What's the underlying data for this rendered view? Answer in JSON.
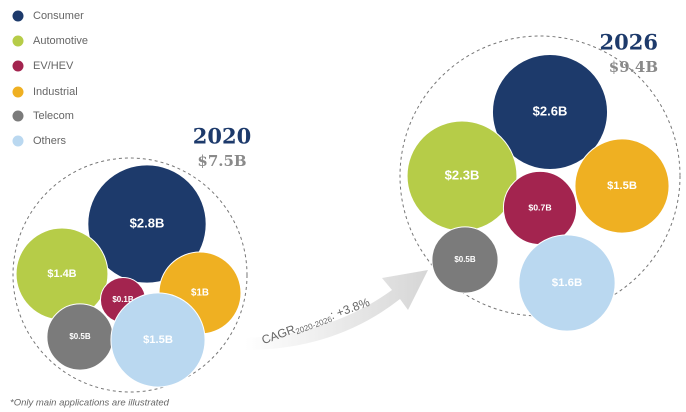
{
  "chart_data": [
    {
      "type": "packed_bubble",
      "title": "2020",
      "subtitle": "$7.5B",
      "categories": [
        "Consumer",
        "Automotive",
        "EV/HEV",
        "Industrial",
        "Telecom",
        "Others"
      ],
      "colors": [
        "#1d3a6b",
        "#b6cc48",
        "#a3244f",
        "#efb022",
        "#7b7b7b",
        "#bad8f0"
      ],
      "values": [
        2.8,
        1.4,
        0.1,
        1,
        0.5,
        1.5
      ],
      "value_labels": [
        "$2.8B",
        "$1.4B",
        "$0.1B",
        "$1B",
        "$0.5B",
        "$1.5B"
      ]
    },
    {
      "type": "packed_bubble",
      "title": "2026",
      "subtitle": "$9.4B",
      "categories": [
        "Consumer",
        "Automotive",
        "EV/HEV",
        "Industrial",
        "Telecom",
        "Others"
      ],
      "colors": [
        "#1d3a6b",
        "#b6cc48",
        "#a3244f",
        "#efb022",
        "#7b7b7b",
        "#bad8f0"
      ],
      "values": [
        2.6,
        2.3,
        0.7,
        1.5,
        0.5,
        1.6
      ],
      "value_labels": [
        "$2.6B",
        "$2.3B",
        "$0.7B",
        "$1.5B",
        "$0.5B",
        "$1.6B"
      ]
    }
  ],
  "annotation": {
    "main": "CAGR",
    "sub": "2020-2026",
    "rest": ": +3.8%"
  },
  "footnote": "*Only main applications are illustrated"
}
